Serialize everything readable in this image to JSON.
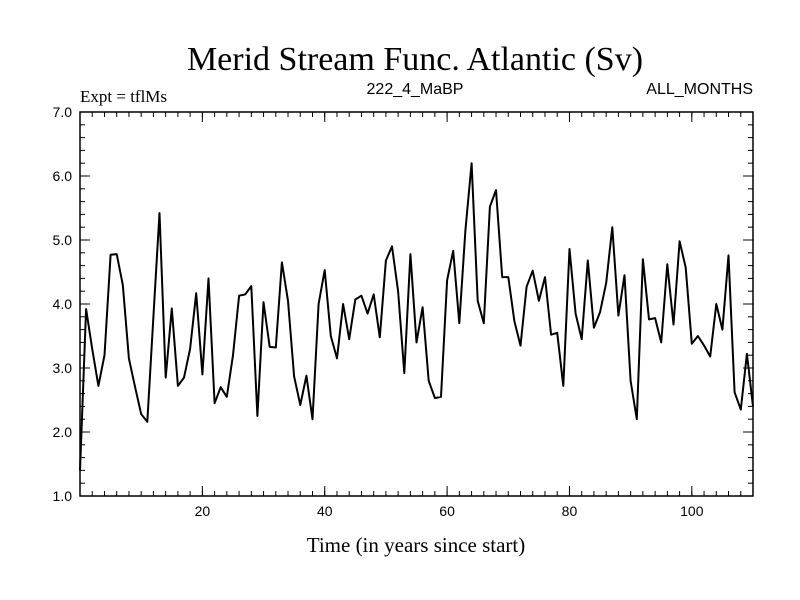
{
  "chart_data": {
    "type": "line",
    "title": "Merid Stream Func. Atlantic (Sv)",
    "subtitle_left": "Expt = tflMs",
    "subtitle_center": "222_4_MaBP",
    "subtitle_right": "ALL_MONTHS",
    "xlabel": "Time (in years since start)",
    "ylabel": "",
    "xlim": [
      0,
      110
    ],
    "ylim": [
      1.0,
      7.0
    ],
    "xticks": [
      20,
      40,
      60,
      80,
      100
    ],
    "xtick_labels": [
      "20",
      "40",
      "60",
      "80",
      "100"
    ],
    "yticks": [
      1.0,
      2.0,
      3.0,
      4.0,
      5.0,
      6.0,
      7.0
    ],
    "ytick_labels": [
      "1.0",
      "2.0",
      "3.0",
      "4.0",
      "5.0",
      "6.0",
      "7.0"
    ],
    "series": [
      {
        "name": "Merid Stream Func. Atlantic",
        "color": "#000000",
        "x": [
          0,
          1,
          2,
          3,
          4,
          5,
          6,
          7,
          8,
          9,
          10,
          11,
          12,
          13,
          14,
          15,
          16,
          17,
          18,
          19,
          20,
          21,
          22,
          23,
          24,
          25,
          26,
          27,
          28,
          29,
          30,
          31,
          32,
          33,
          34,
          35,
          36,
          37,
          38,
          39,
          40,
          41,
          42,
          43,
          44,
          45,
          46,
          47,
          48,
          49,
          50,
          51,
          52,
          53,
          54,
          55,
          56,
          57,
          58,
          59,
          60,
          61,
          62,
          63,
          64,
          65,
          66,
          67,
          68,
          69,
          70,
          71,
          72,
          73,
          74,
          75,
          76,
          77,
          78,
          79,
          80,
          81,
          82,
          83,
          84,
          85,
          86,
          87,
          88,
          89,
          90,
          91,
          92,
          93,
          94,
          95,
          96,
          97,
          98,
          99,
          100,
          101,
          102,
          103,
          104,
          105,
          106,
          107,
          108,
          109,
          110
        ],
        "y": [
          1.4,
          3.92,
          3.3,
          2.72,
          3.2,
          4.77,
          4.78,
          4.3,
          3.15,
          2.7,
          2.28,
          2.16,
          3.8,
          5.42,
          2.85,
          3.93,
          2.72,
          2.85,
          3.3,
          4.17,
          2.9,
          4.4,
          2.45,
          2.7,
          2.55,
          3.2,
          4.13,
          4.15,
          4.28,
          2.25,
          4.03,
          3.33,
          3.32,
          4.65,
          4.05,
          2.87,
          2.42,
          2.88,
          2.2,
          4.0,
          4.53,
          3.5,
          3.15,
          4.0,
          3.45,
          4.07,
          4.13,
          3.85,
          4.15,
          3.48,
          4.68,
          4.9,
          4.2,
          2.92,
          4.78,
          3.4,
          3.95,
          2.8,
          2.53,
          2.55,
          4.37,
          4.83,
          3.7,
          5.15,
          6.2,
          4.05,
          3.7,
          5.52,
          5.78,
          4.42,
          4.42,
          3.73,
          3.35,
          4.27,
          4.52,
          4.05,
          4.42,
          3.52,
          3.55,
          2.72,
          4.86,
          3.85,
          3.45,
          4.68,
          3.63,
          3.87,
          4.33,
          5.2,
          3.82,
          4.45,
          2.8,
          2.2,
          4.7,
          3.76,
          3.78,
          3.4,
          4.62,
          3.68,
          4.98,
          4.57,
          3.38,
          3.5,
          3.35,
          3.18,
          4.0,
          3.6,
          4.76,
          2.62,
          2.35,
          3.22,
          2.4
        ]
      }
    ]
  }
}
